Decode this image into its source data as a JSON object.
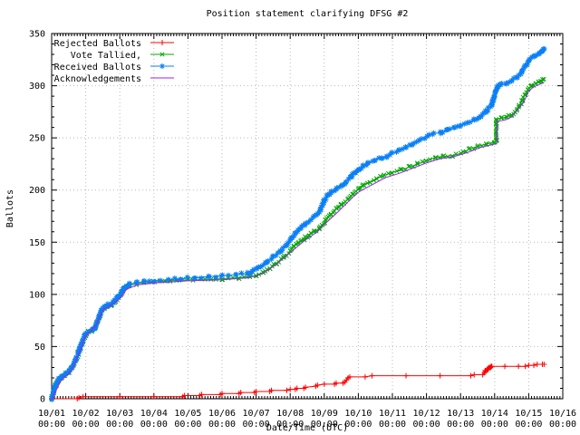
{
  "window": {
    "bg": "#ffffff"
  },
  "chart_data": {
    "type": "line",
    "title": "Position statement clarifying DFSG #2",
    "xlabel": "Date/Time (UTC)",
    "ylabel": "Ballots",
    "ylim": [
      0,
      350
    ],
    "y_major_step": 50,
    "y_minor_step": 10,
    "x_days": 15,
    "x_minor_per_day": 12,
    "grid": true,
    "legend_position": "top-left",
    "colors": {
      "border": "#000000",
      "grid": "#b8b8b8",
      "text": "#000000"
    },
    "y_ticks": [
      "0",
      "50",
      "100",
      "150",
      "200",
      "250",
      "300",
      "350"
    ],
    "x_ticks": [
      {
        "date": "10/01",
        "time": "00:00"
      },
      {
        "date": "10/02",
        "time": "00:00"
      },
      {
        "date": "10/03",
        "time": "00:00"
      },
      {
        "date": "10/04",
        "time": "00:00"
      },
      {
        "date": "10/05",
        "time": "00:00"
      },
      {
        "date": "10/06",
        "time": "00:00"
      },
      {
        "date": "10/07",
        "time": "00:00"
      },
      {
        "date": "10/08",
        "time": "00:00"
      },
      {
        "date": "10/09",
        "time": "00:00"
      },
      {
        "date": "10/10",
        "time": "00:00"
      },
      {
        "date": "10/11",
        "time": "00:00"
      },
      {
        "date": "10/12",
        "time": "00:00"
      },
      {
        "date": "10/13",
        "time": "00:00"
      },
      {
        "date": "10/14",
        "time": "00:00"
      },
      {
        "date": "10/15",
        "time": "00:00"
      },
      {
        "date": "10/16",
        "time": "00:00"
      }
    ],
    "series": [
      {
        "name": "Rejected Ballots",
        "color": "#ff0000",
        "marker": "plus",
        "marker_mode": "points",
        "points": [
          [
            0,
            0
          ],
          [
            0.75,
            0
          ],
          [
            0.8,
            1
          ],
          [
            0.92,
            2
          ],
          [
            2.0,
            2
          ],
          [
            3.0,
            2
          ],
          [
            3.85,
            2
          ],
          [
            3.9,
            3
          ],
          [
            4.35,
            3
          ],
          [
            4.4,
            4
          ],
          [
            4.95,
            4
          ],
          [
            5.0,
            5
          ],
          [
            5.5,
            5
          ],
          [
            5.55,
            6
          ],
          [
            5.95,
            6
          ],
          [
            6.0,
            7
          ],
          [
            6.4,
            7
          ],
          [
            6.45,
            8
          ],
          [
            6.9,
            8
          ],
          [
            7.0,
            9
          ],
          [
            7.15,
            9
          ],
          [
            7.2,
            10
          ],
          [
            7.4,
            10
          ],
          [
            7.45,
            11
          ],
          [
            7.75,
            12
          ],
          [
            7.8,
            13
          ],
          [
            8.0,
            14
          ],
          [
            8.3,
            14
          ],
          [
            8.35,
            15
          ],
          [
            8.55,
            15
          ],
          [
            8.6,
            16
          ],
          [
            8.65,
            18
          ],
          [
            8.7,
            20
          ],
          [
            8.75,
            21
          ],
          [
            9.2,
            21
          ],
          [
            9.4,
            22
          ],
          [
            10.4,
            22
          ],
          [
            11.4,
            22
          ],
          [
            12.3,
            22
          ],
          [
            12.4,
            23
          ],
          [
            12.65,
            23
          ],
          [
            12.7,
            25
          ],
          [
            12.72,
            27
          ],
          [
            12.74,
            26
          ],
          [
            12.78,
            28
          ],
          [
            12.8,
            29
          ],
          [
            12.82,
            29
          ],
          [
            12.84,
            30
          ],
          [
            12.86,
            30
          ],
          [
            12.88,
            30
          ],
          [
            12.9,
            31
          ],
          [
            12.92,
            31
          ],
          [
            13.3,
            31
          ],
          [
            13.7,
            31
          ],
          [
            13.9,
            31
          ],
          [
            14.0,
            32
          ],
          [
            14.15,
            32
          ],
          [
            14.25,
            33
          ],
          [
            14.4,
            33
          ],
          [
            14.45,
            33
          ]
        ]
      },
      {
        "name": "Vote Tallied,",
        "color": "#00a800",
        "marker": "cross",
        "marker_mode": "dense",
        "points": [
          [
            0,
            0
          ],
          [
            0.05,
            5
          ],
          [
            0.1,
            11
          ],
          [
            0.15,
            15
          ],
          [
            0.22,
            18
          ],
          [
            0.3,
            20
          ],
          [
            0.4,
            23
          ],
          [
            0.5,
            25
          ],
          [
            0.6,
            30
          ],
          [
            0.7,
            36
          ],
          [
            0.78,
            43
          ],
          [
            0.85,
            49
          ],
          [
            0.92,
            55
          ],
          [
            1.0,
            61
          ],
          [
            1.08,
            64
          ],
          [
            1.18,
            65
          ],
          [
            1.27,
            67
          ],
          [
            1.33,
            72
          ],
          [
            1.4,
            78
          ],
          [
            1.47,
            84
          ],
          [
            1.55,
            87
          ],
          [
            1.65,
            89
          ],
          [
            1.75,
            90
          ],
          [
            1.85,
            93
          ],
          [
            1.95,
            97
          ],
          [
            2.02,
            100
          ],
          [
            2.1,
            104
          ],
          [
            2.2,
            107
          ],
          [
            2.3,
            109
          ],
          [
            2.5,
            110
          ],
          [
            2.7,
            111
          ],
          [
            3.0,
            112
          ],
          [
            3.5,
            113
          ],
          [
            4.0,
            114
          ],
          [
            4.5,
            114
          ],
          [
            5.0,
            115
          ],
          [
            5.5,
            116
          ],
          [
            5.8,
            117
          ],
          [
            6.0,
            118
          ],
          [
            6.2,
            121
          ],
          [
            6.4,
            125
          ],
          [
            6.6,
            130
          ],
          [
            6.8,
            135
          ],
          [
            7.0,
            141
          ],
          [
            7.1,
            146
          ],
          [
            7.25,
            149
          ],
          [
            7.4,
            153
          ],
          [
            7.55,
            157
          ],
          [
            7.7,
            160
          ],
          [
            7.85,
            163
          ],
          [
            7.95,
            166
          ],
          [
            8.05,
            171
          ],
          [
            8.2,
            177
          ],
          [
            8.35,
            182
          ],
          [
            8.5,
            186
          ],
          [
            8.7,
            191
          ],
          [
            8.85,
            196
          ],
          [
            9.0,
            201
          ],
          [
            9.15,
            205
          ],
          [
            9.35,
            208
          ],
          [
            9.55,
            211
          ],
          [
            9.75,
            214
          ],
          [
            10.0,
            217
          ],
          [
            10.25,
            219
          ],
          [
            10.5,
            222
          ],
          [
            10.75,
            225
          ],
          [
            11.0,
            228
          ],
          [
            11.25,
            231
          ],
          [
            11.5,
            232
          ],
          [
            11.75,
            233
          ],
          [
            12.0,
            235
          ],
          [
            12.25,
            239
          ],
          [
            12.5,
            242
          ],
          [
            12.75,
            244
          ],
          [
            13.0,
            246
          ],
          [
            13.05,
            247
          ],
          [
            13.06,
            268
          ],
          [
            13.2,
            269
          ],
          [
            13.35,
            270
          ],
          [
            13.5,
            272
          ],
          [
            13.6,
            275
          ],
          [
            13.7,
            280
          ],
          [
            13.8,
            285
          ],
          [
            13.9,
            292
          ],
          [
            14.0,
            297
          ],
          [
            14.1,
            300
          ],
          [
            14.2,
            302
          ],
          [
            14.3,
            303
          ],
          [
            14.4,
            305
          ],
          [
            14.45,
            306
          ]
        ]
      },
      {
        "name": "Received Ballots",
        "color": "#0a80f5",
        "marker": "star",
        "marker_mode": "dense",
        "points": [
          [
            0,
            0
          ],
          [
            0.05,
            6
          ],
          [
            0.1,
            12
          ],
          [
            0.15,
            16
          ],
          [
            0.22,
            19
          ],
          [
            0.3,
            21
          ],
          [
            0.4,
            24
          ],
          [
            0.5,
            26
          ],
          [
            0.6,
            31
          ],
          [
            0.7,
            37
          ],
          [
            0.78,
            44
          ],
          [
            0.85,
            50
          ],
          [
            0.92,
            56
          ],
          [
            1.0,
            62
          ],
          [
            1.08,
            65
          ],
          [
            1.18,
            66
          ],
          [
            1.27,
            68
          ],
          [
            1.33,
            73
          ],
          [
            1.4,
            79
          ],
          [
            1.47,
            85
          ],
          [
            1.55,
            88
          ],
          [
            1.65,
            90
          ],
          [
            1.75,
            91
          ],
          [
            1.85,
            94
          ],
          [
            1.95,
            98
          ],
          [
            2.02,
            101
          ],
          [
            2.1,
            105
          ],
          [
            2.2,
            108
          ],
          [
            2.3,
            110
          ],
          [
            2.5,
            111
          ],
          [
            2.7,
            112
          ],
          [
            3.0,
            113
          ],
          [
            3.4,
            114
          ],
          [
            3.8,
            115
          ],
          [
            4.2,
            116
          ],
          [
            4.6,
            117
          ],
          [
            5.0,
            118
          ],
          [
            5.4,
            119
          ],
          [
            5.75,
            120
          ],
          [
            5.9,
            122
          ],
          [
            6.0,
            124
          ],
          [
            6.15,
            127
          ],
          [
            6.3,
            131
          ],
          [
            6.5,
            136
          ],
          [
            6.7,
            141
          ],
          [
            6.85,
            146
          ],
          [
            7.0,
            152
          ],
          [
            7.15,
            158
          ],
          [
            7.3,
            163
          ],
          [
            7.45,
            167
          ],
          [
            7.6,
            172
          ],
          [
            7.75,
            176
          ],
          [
            7.9,
            181
          ],
          [
            8.0,
            190
          ],
          [
            8.1,
            195
          ],
          [
            8.2,
            198
          ],
          [
            8.35,
            201
          ],
          [
            8.5,
            204
          ],
          [
            8.65,
            208
          ],
          [
            8.8,
            213
          ],
          [
            8.9,
            217
          ],
          [
            9.0,
            220
          ],
          [
            9.15,
            223
          ],
          [
            9.3,
            226
          ],
          [
            9.5,
            229
          ],
          [
            9.7,
            231
          ],
          [
            9.85,
            232
          ],
          [
            10.0,
            235
          ],
          [
            10.2,
            238
          ],
          [
            10.4,
            241
          ],
          [
            10.6,
            244
          ],
          [
            10.8,
            247
          ],
          [
            11.0,
            252
          ],
          [
            11.2,
            254
          ],
          [
            11.4,
            255
          ],
          [
            11.6,
            257
          ],
          [
            11.8,
            259
          ],
          [
            12.0,
            262
          ],
          [
            12.2,
            264
          ],
          [
            12.4,
            267
          ],
          [
            12.6,
            271
          ],
          [
            12.75,
            275
          ],
          [
            12.9,
            281
          ],
          [
            12.95,
            285
          ],
          [
            13.0,
            290
          ],
          [
            13.05,
            296
          ],
          [
            13.1,
            300
          ],
          [
            13.2,
            302
          ],
          [
            13.35,
            302
          ],
          [
            13.5,
            305
          ],
          [
            13.65,
            308
          ],
          [
            13.8,
            313
          ],
          [
            13.9,
            319
          ],
          [
            14.0,
            324
          ],
          [
            14.1,
            327
          ],
          [
            14.2,
            329
          ],
          [
            14.3,
            331
          ],
          [
            14.4,
            333
          ],
          [
            14.45,
            335
          ]
        ]
      },
      {
        "name": "Acknowledgements",
        "color": "#a020f0",
        "marker": "none",
        "marker_mode": "none",
        "points": [
          [
            0,
            0
          ],
          [
            0.3,
            19
          ],
          [
            0.5,
            24
          ],
          [
            0.6,
            29
          ],
          [
            0.7,
            35
          ],
          [
            0.85,
            48
          ],
          [
            1.0,
            60
          ],
          [
            1.3,
            70
          ],
          [
            1.5,
            85
          ],
          [
            1.8,
            91
          ],
          [
            2.0,
            96
          ],
          [
            2.2,
            105
          ],
          [
            2.5,
            109
          ],
          [
            3.0,
            111
          ],
          [
            4.0,
            113
          ],
          [
            5.0,
            114
          ],
          [
            5.8,
            116
          ],
          [
            6.2,
            120
          ],
          [
            6.6,
            129
          ],
          [
            7.0,
            140
          ],
          [
            7.4,
            151
          ],
          [
            7.8,
            160
          ],
          [
            8.0,
            167
          ],
          [
            8.4,
            179
          ],
          [
            8.8,
            192
          ],
          [
            9.0,
            198
          ],
          [
            9.4,
            205
          ],
          [
            9.8,
            212
          ],
          [
            10.2,
            216
          ],
          [
            10.6,
            221
          ],
          [
            11.0,
            226
          ],
          [
            11.4,
            230
          ],
          [
            11.8,
            232
          ],
          [
            12.2,
            236
          ],
          [
            12.6,
            241
          ],
          [
            13.0,
            244
          ],
          [
            13.06,
            245
          ],
          [
            13.08,
            266
          ],
          [
            13.3,
            267
          ],
          [
            13.5,
            270
          ],
          [
            13.7,
            278
          ],
          [
            13.85,
            284
          ],
          [
            14.0,
            295
          ],
          [
            14.15,
            299
          ],
          [
            14.3,
            301
          ],
          [
            14.45,
            303
          ]
        ]
      }
    ]
  }
}
